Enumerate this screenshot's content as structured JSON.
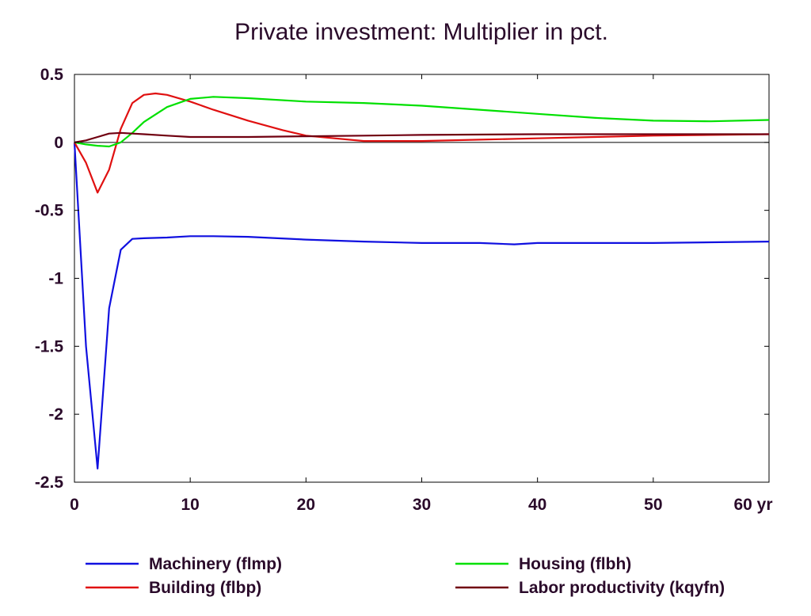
{
  "chart_data": {
    "type": "line",
    "title": "Private investment: Multiplier in pct.",
    "xlabel": "",
    "ylabel": "",
    "x_unit": "yr",
    "xlim": [
      0,
      60
    ],
    "ylim": [
      -2.5,
      0.5
    ],
    "xticks": [
      0,
      10,
      20,
      30,
      40,
      50,
      60
    ],
    "xtick_labels": [
      "0",
      "10",
      "20",
      "30",
      "40",
      "50",
      "60 yr"
    ],
    "yticks": [
      0.5,
      0,
      -0.5,
      -1,
      -1.5,
      -2,
      -2.5
    ],
    "ytick_labels": [
      "0.5",
      "0",
      "-0.5",
      "-1",
      "-1.5",
      "-2",
      "-2.5"
    ],
    "grid": false,
    "zero_line": true,
    "legend_position": "bottom",
    "series": [
      {
        "name": "Machinery (flmp)",
        "color": "#1010e0",
        "x": [
          0,
          1,
          2,
          3,
          4,
          5,
          6,
          8,
          10,
          12,
          15,
          20,
          25,
          30,
          35,
          38,
          40,
          45,
          50,
          55,
          60
        ],
        "y": [
          0,
          -1.5,
          -2.4,
          -1.22,
          -0.79,
          -0.71,
          -0.705,
          -0.7,
          -0.69,
          -0.69,
          -0.695,
          -0.715,
          -0.73,
          -0.74,
          -0.74,
          -0.75,
          -0.74,
          -0.74,
          -0.74,
          -0.735,
          -0.73
        ]
      },
      {
        "name": "Building (flbp)",
        "color": "#e01010",
        "x": [
          0,
          1,
          2,
          3,
          4,
          5,
          6,
          7,
          8,
          10,
          12,
          15,
          18,
          20,
          25,
          30,
          35,
          40,
          45,
          50,
          55,
          60
        ],
        "y": [
          0,
          -0.15,
          -0.37,
          -0.2,
          0.1,
          0.29,
          0.35,
          0.36,
          0.35,
          0.3,
          0.24,
          0.16,
          0.09,
          0.05,
          0.01,
          0.01,
          0.02,
          0.03,
          0.04,
          0.05,
          0.055,
          0.06
        ]
      },
      {
        "name": "Housing (flbh)",
        "color": "#00e000",
        "x": [
          0,
          1,
          2,
          3,
          4,
          5,
          6,
          8,
          10,
          12,
          15,
          20,
          25,
          30,
          35,
          40,
          45,
          50,
          55,
          60
        ],
        "y": [
          0,
          -0.015,
          -0.025,
          -0.03,
          0.0,
          0.07,
          0.15,
          0.26,
          0.32,
          0.335,
          0.325,
          0.3,
          0.29,
          0.27,
          0.24,
          0.21,
          0.18,
          0.16,
          0.155,
          0.165
        ]
      },
      {
        "name": "Labor productivity (kqyfn)",
        "color": "#700010",
        "x": [
          0,
          1,
          2,
          3,
          4,
          5,
          6,
          8,
          10,
          15,
          20,
          25,
          30,
          40,
          50,
          60
        ],
        "y": [
          0,
          0.015,
          0.04,
          0.065,
          0.07,
          0.065,
          0.06,
          0.05,
          0.04,
          0.04,
          0.045,
          0.05,
          0.055,
          0.06,
          0.06,
          0.06
        ]
      }
    ]
  }
}
